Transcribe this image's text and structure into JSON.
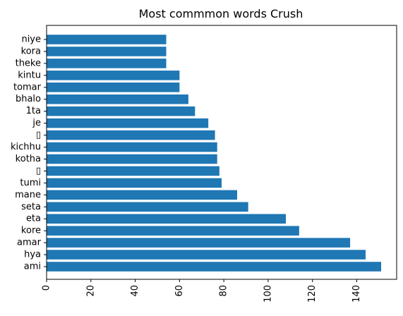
{
  "chart_data": {
    "type": "bar",
    "orientation": "horizontal",
    "title": "Most commmon words Crush",
    "xlabel": "",
    "ylabel": "",
    "categories": [
      "ami",
      "hya",
      "amar",
      "kore",
      "eta",
      "seta",
      "mane",
      "tumi",
      "▯",
      "kotha",
      "kichhu",
      "▯",
      "je",
      "1ta",
      "bhalo",
      "tomar",
      "kintu",
      "theke",
      "kora",
      "niye"
    ],
    "values": [
      151,
      144,
      137,
      114,
      108,
      91,
      86,
      79,
      78,
      77,
      77,
      76,
      73,
      67,
      64,
      60,
      60,
      54,
      54,
      54
    ],
    "xlim": [
      0,
      158
    ],
    "xticks": [
      "0",
      "20",
      "40",
      "60",
      "80",
      "100",
      "120",
      "140"
    ],
    "xtick_rotation": "vertical",
    "bar_color": "#1f77b4",
    "grid": false,
    "legend": "none"
  }
}
